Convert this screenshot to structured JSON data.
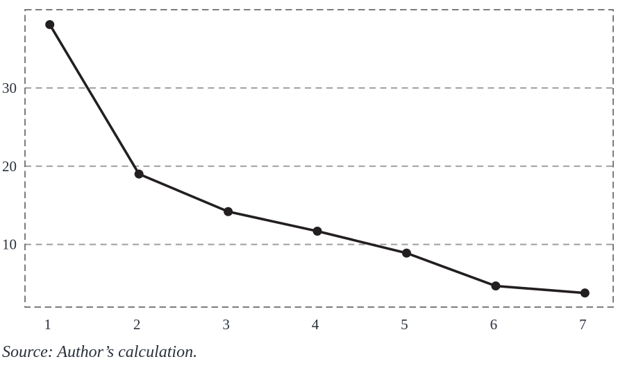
{
  "figure": {
    "source_note": "Source: Author’s calculation."
  },
  "chart_data": {
    "type": "line",
    "title": "",
    "xlabel": "",
    "ylabel": "",
    "x": [
      1,
      2,
      3,
      4,
      5,
      6,
      7
    ],
    "values": [
      38.1,
      19.0,
      14.2,
      11.7,
      8.9,
      4.7,
      3.8
    ],
    "xtick_labels": [
      "1",
      "2",
      "3",
      "4",
      "5",
      "6",
      "7"
    ],
    "yticks": [
      10,
      20,
      30
    ],
    "ytick_labels": [
      "10",
      "20",
      "30"
    ],
    "ylim": [
      2,
      40
    ],
    "grid": "dashed-horizontal",
    "legend": "none",
    "marker": "filled-circle",
    "frame_style": "dashed",
    "colors": {
      "line": "#231f20",
      "marker": "#231f20",
      "grid": "#9e9e9e",
      "frame": "#515151",
      "tick_label": "#2b313c"
    }
  }
}
